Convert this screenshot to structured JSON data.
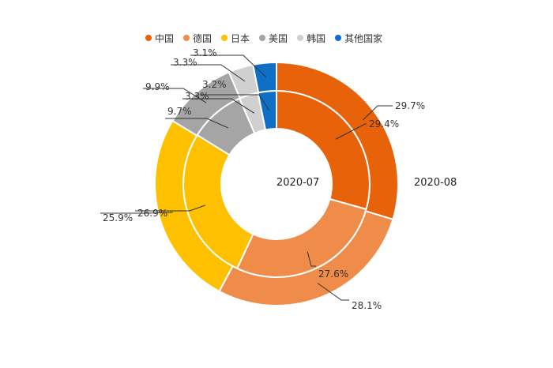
{
  "chart_data": {
    "type": "donut",
    "categories": [
      "中国",
      "德国",
      "日本",
      "美国",
      "韩国",
      "其他国家"
    ],
    "colors": [
      "#E8620A",
      "#F08C4A",
      "#FFC000",
      "#A5A5A5",
      "#D0D0D0",
      "#0F6FC6"
    ],
    "series": [
      {
        "name": "2020-07",
        "values": [
          29.4,
          27.6,
          26.9,
          9.7,
          3.3,
          3.2
        ]
      },
      {
        "name": "2020-08",
        "values": [
          29.7,
          28.1,
          25.9,
          9.9,
          3.3,
          3.1
        ]
      }
    ],
    "value_suffix": "%",
    "legend_position": "top"
  }
}
